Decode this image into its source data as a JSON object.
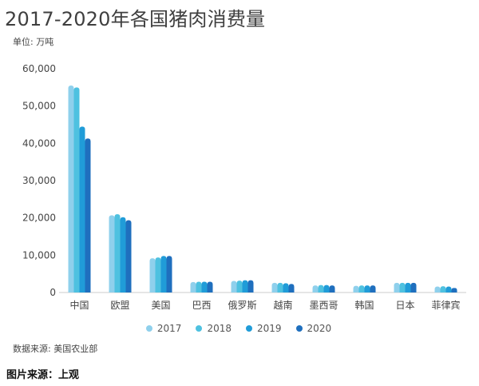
{
  "caption": "图片来源：上观",
  "chart_data": {
    "type": "bar",
    "title": "2017-2020年各国猪肉消费量",
    "unit_label": "单位: 万吨",
    "source": "数据来源: 美国农业部",
    "categories": [
      "中国",
      "欧盟",
      "美国",
      "巴西",
      "俄罗斯",
      "越南",
      "墨西哥",
      "韩国",
      "日本",
      "菲律宾"
    ],
    "series": [
      {
        "name": "2017",
        "color": "#8fd0ec",
        "values": [
          55500,
          20700,
          9200,
          2800,
          3100,
          2600,
          1900,
          1800,
          2600,
          1600
        ]
      },
      {
        "name": "2018",
        "color": "#4ec1e0",
        "values": [
          55000,
          21000,
          9400,
          2900,
          3200,
          2600,
          2000,
          1900,
          2600,
          1700
        ]
      },
      {
        "name": "2019",
        "color": "#209cd8",
        "values": [
          44500,
          20200,
          9800,
          2900,
          3300,
          2500,
          2000,
          1900,
          2600,
          1600
        ]
      },
      {
        "name": "2020",
        "color": "#1f6fbe",
        "values": [
          41300,
          19400,
          9800,
          2900,
          3300,
          2300,
          1900,
          1900,
          2600,
          1200
        ]
      }
    ],
    "ylim": [
      0,
      60000
    ],
    "yticks": [
      "0",
      "10,000",
      "20,000",
      "30,000",
      "40,000",
      "50,000",
      "60,000"
    ],
    "grid": false,
    "legend_position": "bottom"
  }
}
